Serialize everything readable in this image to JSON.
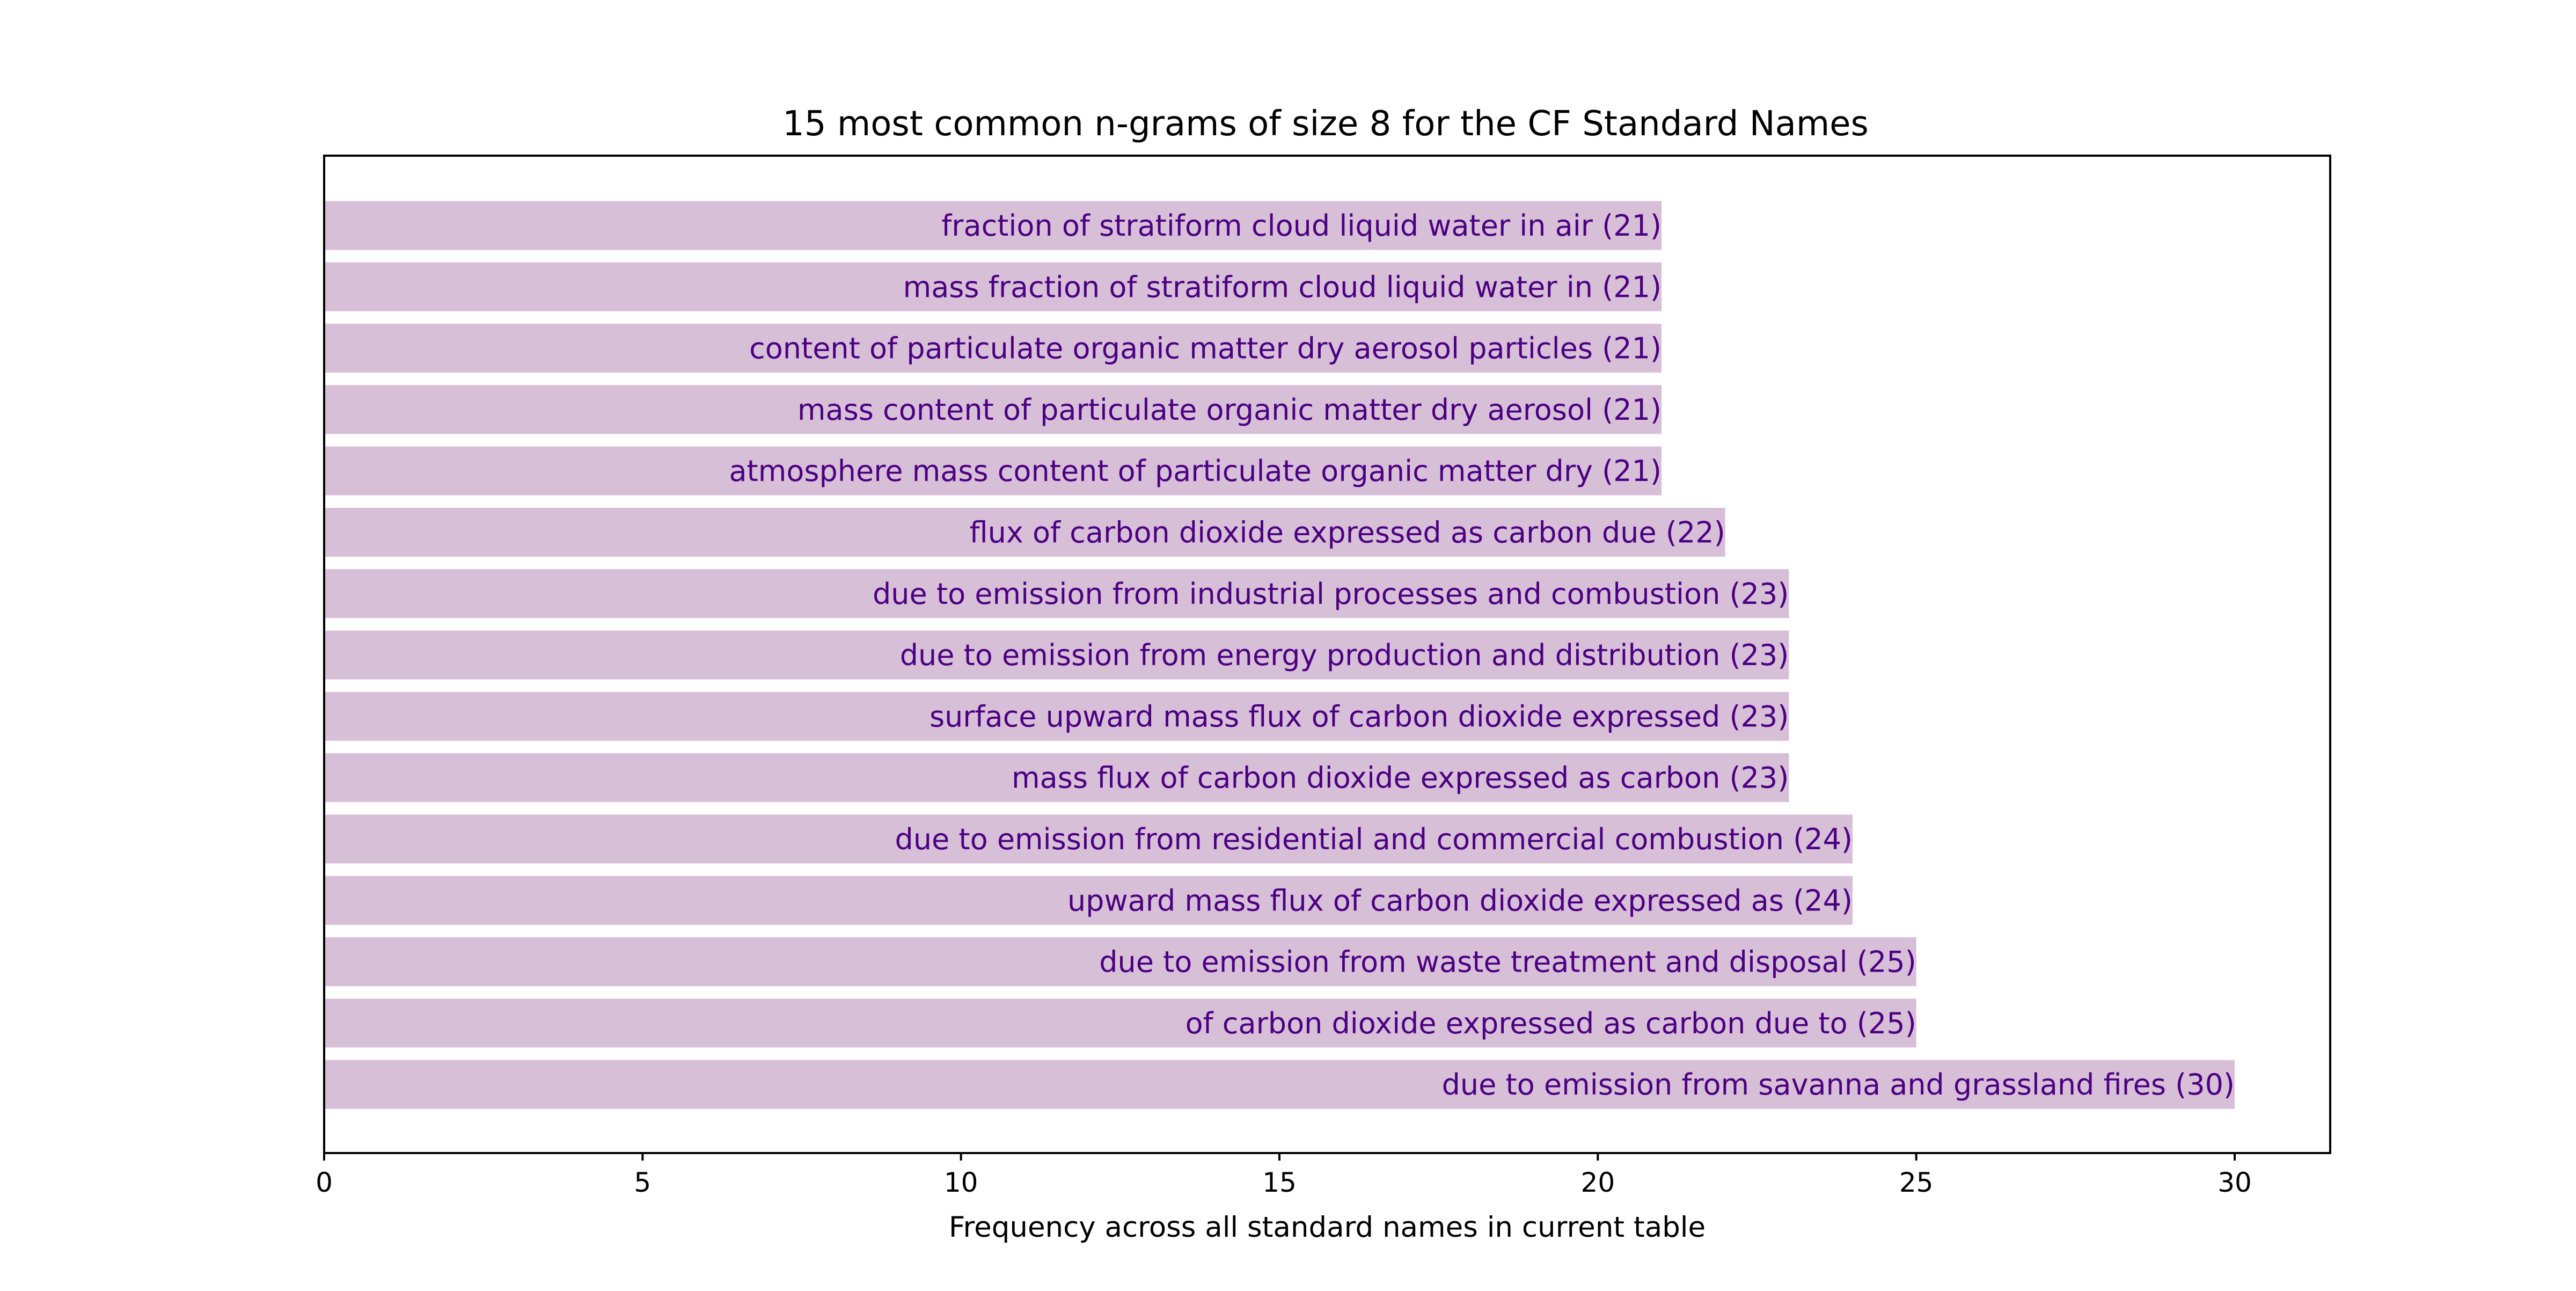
{
  "chart_data": {
    "type": "bar",
    "orientation": "horizontal",
    "title": "15 most common n-grams of size 8 for the CF Standard Names",
    "xlabel": "Frequency across all standard names in current table",
    "ylabel": "",
    "xlim": [
      0,
      31.5
    ],
    "xticks": [
      0,
      5,
      10,
      15,
      20,
      25,
      30
    ],
    "grid": false,
    "bar_color": "#d8bfd8",
    "label_color": "#4b0082",
    "categories": [
      "fraction of stratiform cloud liquid water in air",
      "mass fraction of stratiform cloud liquid water in",
      "content of particulate organic matter dry aerosol particles",
      "mass content of particulate organic matter dry aerosol",
      "atmosphere mass content of particulate organic matter dry",
      "flux of carbon dioxide expressed as carbon due",
      "due to emission from industrial processes and combustion",
      "due to emission from energy production and distribution",
      "surface upward mass flux of carbon dioxide expressed",
      "mass flux of carbon dioxide expressed as carbon",
      "due to emission from residential and commercial combustion",
      "upward mass flux of carbon dioxide expressed as",
      "due to emission from waste treatment and disposal",
      "of carbon dioxide expressed as carbon due to",
      "due to emission from savanna and grassland fires"
    ],
    "values": [
      21,
      21,
      21,
      21,
      21,
      22,
      23,
      23,
      23,
      23,
      24,
      24,
      25,
      25,
      30
    ],
    "bar_labels": [
      "fraction of stratiform cloud liquid water in air (21)",
      "mass fraction of stratiform cloud liquid water in (21)",
      "content of particulate organic matter dry aerosol particles (21)",
      "mass content of particulate organic matter dry aerosol (21)",
      "atmosphere mass content of particulate organic matter dry (21)",
      "flux of carbon dioxide expressed as carbon due (22)",
      "due to emission from industrial processes and combustion (23)",
      "due to emission from energy production and distribution (23)",
      "surface upward mass flux of carbon dioxide expressed (23)",
      "mass flux of carbon dioxide expressed as carbon (23)",
      "due to emission from residential and commercial combustion (24)",
      "upward mass flux of carbon dioxide expressed as (24)",
      "due to emission from waste treatment and disposal (25)",
      "of carbon dioxide expressed as carbon due to (25)",
      "due to emission from savanna and grassland fires (30)"
    ]
  }
}
